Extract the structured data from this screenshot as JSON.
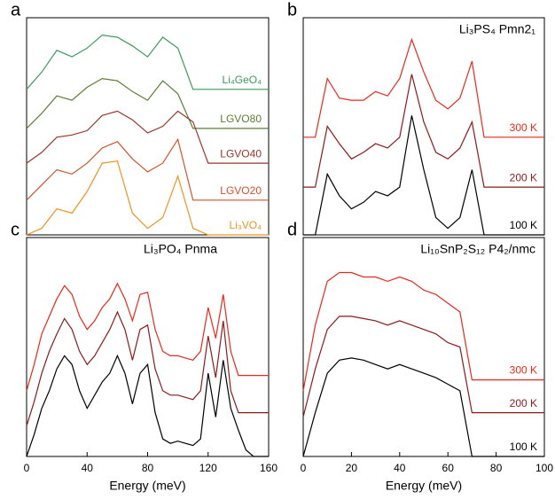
{
  "chart_data": [
    {
      "type": "line",
      "label": "a",
      "x": [
        0,
        10,
        20,
        30,
        40,
        50,
        60,
        70,
        80,
        90,
        100,
        110,
        120,
        130,
        140,
        150,
        160
      ],
      "xlim": [
        0,
        160
      ],
      "ylim": [
        0,
        100
      ],
      "series": [
        {
          "name": "Li₄GeO₄",
          "color": "#3c9a5c",
          "values": [
            67,
            75,
            85,
            82,
            86,
            92,
            91,
            87,
            82,
            91,
            86,
            67,
            67,
            67,
            67,
            67,
            67
          ]
        },
        {
          "name": "LGVO80",
          "color": "#5a7f34",
          "values": [
            49,
            56,
            64,
            62,
            68,
            72,
            71,
            66,
            62,
            71,
            65,
            49,
            49,
            49,
            49,
            49,
            49
          ]
        },
        {
          "name": "LGVO40",
          "color": "#9a3628",
          "values": [
            33,
            38,
            45,
            46,
            48,
            55,
            57,
            53,
            47,
            50,
            57,
            52,
            33,
            33,
            33,
            33,
            33
          ]
        },
        {
          "name": "LGVO20",
          "color": "#d4522c",
          "values": [
            16,
            23,
            30,
            28,
            33,
            40,
            43,
            35,
            29,
            33,
            44,
            16,
            16,
            16,
            16,
            16,
            16
          ]
        },
        {
          "name": "Li₃VO₄",
          "color": "#f39220",
          "values": [
            0,
            3,
            12,
            10,
            20,
            33,
            34,
            10,
            3,
            8,
            27,
            3,
            0,
            0,
            0,
            0,
            0
          ]
        }
      ]
    },
    {
      "type": "line",
      "label": "b",
      "title": "Li₃PS₄ Pmn2₁",
      "x": [
        0,
        5,
        10,
        15,
        20,
        25,
        30,
        35,
        40,
        45,
        50,
        55,
        60,
        65,
        70,
        75,
        80,
        85,
        90,
        95,
        100
      ],
      "xlim": [
        0,
        100
      ],
      "ylim": [
        0,
        100
      ],
      "series": [
        {
          "name": "300 K",
          "color": "#e8291c",
          "values": [
            45,
            45,
            72,
            63,
            62,
            62,
            66,
            64,
            72,
            90,
            75,
            62,
            58,
            63,
            80,
            45,
            45,
            45,
            45,
            45,
            45
          ]
        },
        {
          "name": "200 K",
          "color": "#8e1a1a",
          "values": [
            22,
            22,
            50,
            42,
            35,
            38,
            42,
            40,
            45,
            74,
            52,
            38,
            35,
            40,
            52,
            22,
            22,
            22,
            22,
            22,
            22
          ]
        },
        {
          "name": "100 K",
          "color": "#000000",
          "values": [
            0,
            0,
            28,
            18,
            12,
            15,
            20,
            18,
            22,
            55,
            30,
            8,
            3,
            8,
            30,
            0,
            0,
            0,
            0,
            0,
            0
          ]
        }
      ]
    },
    {
      "type": "line",
      "label": "c",
      "title": "Li₃PO₄ Pnma",
      "xlabel": "Energy (meV)",
      "x": [
        0,
        5,
        10,
        15,
        20,
        25,
        30,
        35,
        40,
        45,
        50,
        55,
        60,
        65,
        70,
        75,
        80,
        85,
        90,
        95,
        100,
        105,
        110,
        115,
        120,
        125,
        130,
        135,
        140,
        145,
        150,
        155,
        160
      ],
      "xlim": [
        0,
        160
      ],
      "ylim": [
        0,
        100
      ],
      "xticks": [
        0,
        40,
        80,
        120,
        160
      ],
      "series": [
        {
          "name": "",
          "color": "#e8291c",
          "values": [
            30,
            42,
            56,
            64,
            72,
            78,
            74,
            64,
            58,
            62,
            68,
            72,
            79,
            72,
            62,
            74,
            75,
            58,
            48,
            46,
            46,
            45,
            44,
            48,
            68,
            54,
            74,
            48,
            37,
            37,
            37,
            37,
            37
          ]
        },
        {
          "name": "",
          "color": "#8e1a1a",
          "values": [
            14,
            25,
            38,
            48,
            56,
            63,
            58,
            48,
            42,
            46,
            52,
            58,
            66,
            58,
            44,
            58,
            60,
            40,
            30,
            28,
            28,
            27,
            26,
            30,
            55,
            36,
            62,
            30,
            20,
            20,
            20,
            20,
            20
          ]
        },
        {
          "name": "",
          "color": "#000000",
          "values": [
            0,
            10,
            22,
            30,
            40,
            46,
            42,
            30,
            22,
            28,
            34,
            38,
            46,
            38,
            24,
            38,
            42,
            20,
            8,
            6,
            7,
            6,
            5,
            8,
            38,
            18,
            44,
            22,
            12,
            3,
            0,
            0,
            0
          ]
        }
      ]
    },
    {
      "type": "line",
      "label": "d",
      "title": "Li₁₀SnP₂S₁₂ P4₂/nmc",
      "xlabel": "Energy (meV)",
      "x": [
        0,
        5,
        10,
        15,
        20,
        25,
        30,
        35,
        40,
        45,
        50,
        55,
        60,
        65,
        70,
        75,
        80,
        85,
        90,
        95,
        100
      ],
      "xlim": [
        0,
        100
      ],
      "ylim": [
        0,
        100
      ],
      "xticks": [
        0,
        20,
        40,
        60,
        80,
        100
      ],
      "series": [
        {
          "name": "300 K",
          "color": "#e8291c",
          "values": [
            30,
            60,
            80,
            84,
            84,
            82,
            82,
            80,
            82,
            80,
            76,
            74,
            70,
            66,
            35,
            35,
            35,
            35,
            35,
            35,
            35
          ]
        },
        {
          "name": "200 K",
          "color": "#8e1a1a",
          "values": [
            18,
            40,
            58,
            64,
            64,
            63,
            62,
            60,
            62,
            60,
            58,
            56,
            52,
            50,
            20,
            20,
            20,
            20,
            20,
            20,
            20
          ]
        },
        {
          "name": "100 K",
          "color": "#000000",
          "values": [
            0,
            20,
            38,
            44,
            45,
            44,
            42,
            40,
            42,
            40,
            38,
            36,
            33,
            30,
            0,
            0,
            0,
            0,
            0,
            0,
            0
          ]
        }
      ]
    }
  ]
}
